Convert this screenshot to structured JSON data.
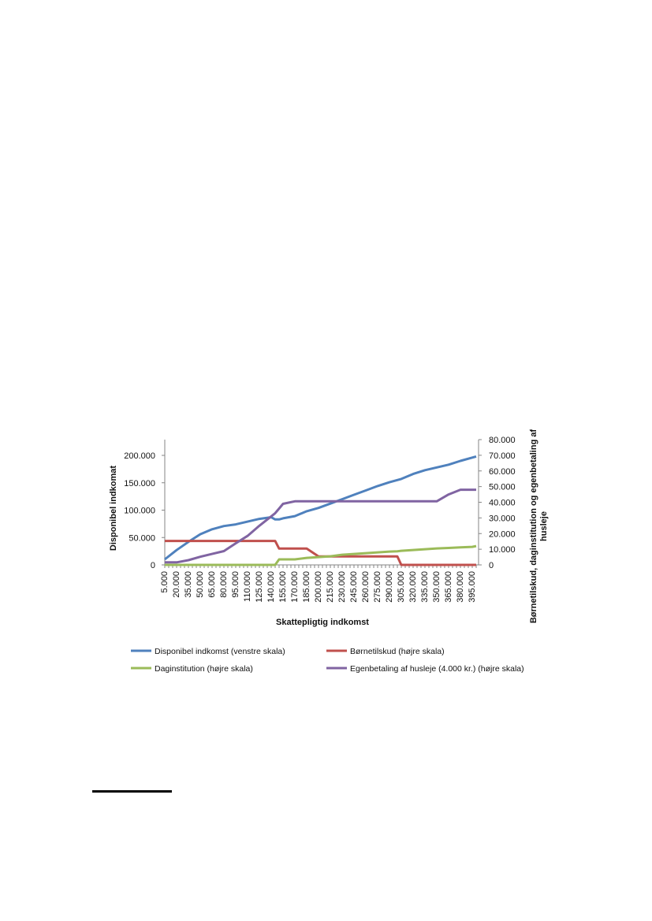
{
  "chart_data": {
    "type": "line",
    "xlabel": "Skattepligtig indkomst",
    "ylabel_left": "Disponibel indkomat",
    "ylabel_right": "Børnetilskud, daginstitution og egenbetaling af husleje",
    "ylim_left": [
      0,
      200000
    ],
    "ylim_right": [
      0,
      80000
    ],
    "yticks_left": [
      "0",
      "50.000",
      "100.000",
      "150.000",
      "200.000"
    ],
    "yticks_right": [
      "0",
      "10.000",
      "20.000",
      "30.000",
      "40.000",
      "50.000",
      "60.000",
      "70.000",
      "80.000"
    ],
    "x_tick_labels": [
      "5.000",
      "20.000",
      "35.000",
      "50.000",
      "65.000",
      "80.000",
      "95.000",
      "110.000",
      "125.000",
      "140.000",
      "155.000",
      "170.000",
      "185.000",
      "200.000",
      "215.000",
      "230.000",
      "245.000",
      "260.000",
      "275.000",
      "290.000",
      "305.000",
      "320.000",
      "335.000",
      "350.000",
      "365.000",
      "380.000",
      "395.000"
    ],
    "x": [
      5000,
      20000,
      35000,
      50000,
      65000,
      80000,
      95000,
      110000,
      125000,
      140000,
      145000,
      150000,
      155000,
      170000,
      185000,
      200000,
      215000,
      230000,
      245000,
      260000,
      275000,
      290000,
      300000,
      305000,
      320000,
      335000,
      350000,
      365000,
      380000,
      395000,
      400000
    ],
    "grid": false,
    "legend_position": "bottom",
    "series": [
      {
        "name": "Disponibel indkomst (venstre skala)",
        "axis": "left",
        "color": "#4f81bd",
        "values": [
          10000,
          27000,
          42000,
          56000,
          65000,
          71000,
          74000,
          79000,
          84000,
          87000,
          83000,
          83000,
          85000,
          89000,
          98000,
          104000,
          112000,
          120000,
          128000,
          136000,
          144000,
          151000,
          155000,
          157000,
          166000,
          173000,
          178000,
          183000,
          190000,
          196000,
          198000
        ]
      },
      {
        "name": "Børnetilskud (højre skala)",
        "axis": "right",
        "color": "#c0504d",
        "values": [
          15300,
          15300,
          15300,
          15300,
          15300,
          15300,
          15300,
          15300,
          15300,
          15300,
          15300,
          10400,
          10400,
          10400,
          10400,
          5400,
          5400,
          5400,
          5400,
          5400,
          5400,
          5400,
          5400,
          0,
          0,
          0,
          0,
          0,
          0,
          0,
          0
        ]
      },
      {
        "name": "Daginstitution (højre skala)",
        "axis": "right",
        "color": "#9bbb59",
        "values": [
          0,
          0,
          0,
          0,
          0,
          0,
          0,
          0,
          0,
          0,
          0,
          3500,
          3500,
          3500,
          4500,
          5000,
          5500,
          6500,
          7000,
          7500,
          8000,
          8500,
          8700,
          9000,
          9500,
          10000,
          10500,
          10800,
          11200,
          11500,
          12000
        ]
      },
      {
        "name": "Egenbetaling af husleje (4.000 kr.) (højre skala)",
        "axis": "right",
        "color": "#8064a2",
        "values": [
          1600,
          1600,
          3000,
          5200,
          7000,
          8800,
          13800,
          18500,
          25000,
          31000,
          33000,
          36000,
          39000,
          40600,
          40600,
          40600,
          40600,
          40600,
          40600,
          40600,
          40600,
          40600,
          40600,
          40600,
          40600,
          40600,
          40600,
          45000,
          48000,
          48000,
          48000
        ]
      }
    ]
  }
}
